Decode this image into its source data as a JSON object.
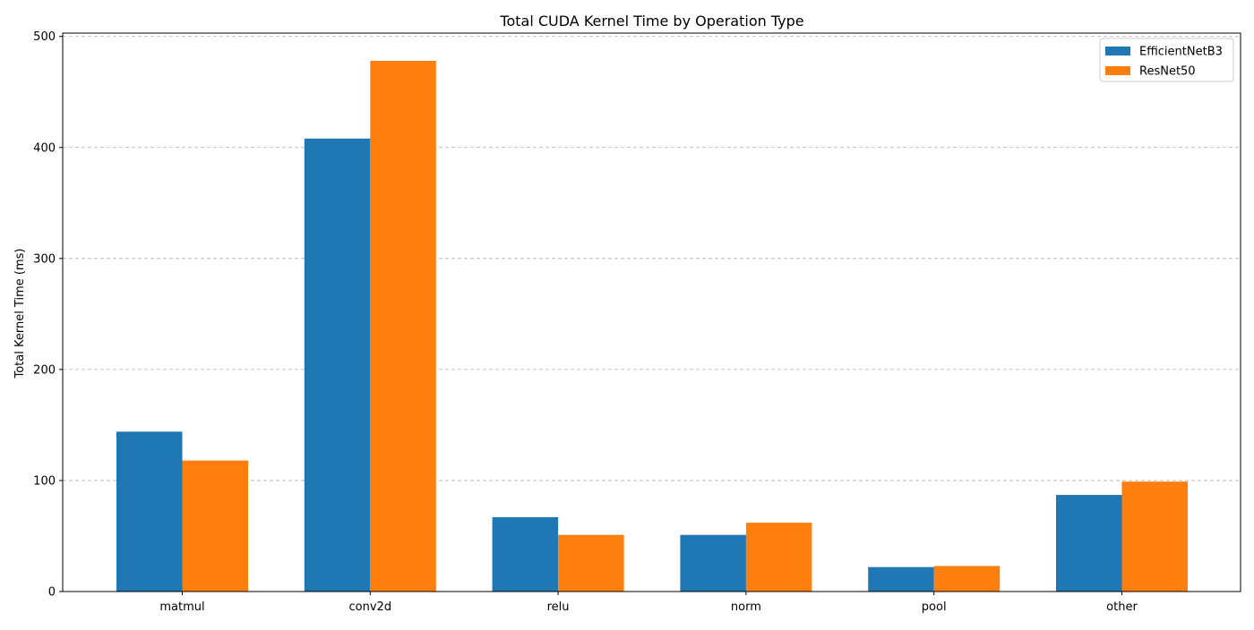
{
  "chart_data": {
    "type": "bar",
    "title": "Total CUDA Kernel Time by Operation Type",
    "xlabel": "",
    "ylabel": "Total Kernel Time (ms)",
    "categories": [
      "matmul",
      "conv2d",
      "relu",
      "norm",
      "pool",
      "other"
    ],
    "series": [
      {
        "name": "EfficientNetB3",
        "color": "#1f77b4",
        "values": [
          144,
          408,
          67,
          51,
          22,
          87
        ]
      },
      {
        "name": "ResNet50",
        "color": "#ff7f0e",
        "values": [
          118,
          478,
          51,
          62,
          23,
          99
        ]
      }
    ],
    "ylim": [
      0,
      503
    ],
    "yticks": [
      0,
      100,
      200,
      300,
      400,
      500
    ],
    "grid": "horizontal dashed",
    "legend_position": "top-right"
  }
}
